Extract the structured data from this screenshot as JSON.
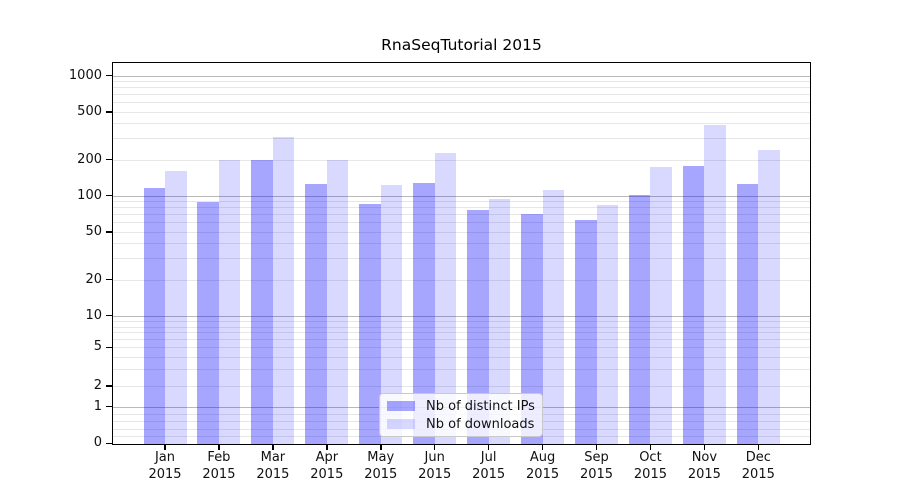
{
  "figure": {
    "background": "#ffffff",
    "frame_color": "#000000",
    "grid_minor_color": "#e7e7e7",
    "grid_major_color": "#b9b9b9"
  },
  "chart_data": {
    "type": "bar",
    "title": "RnaSeqTutorial 2015",
    "xlabel": "",
    "ylabel": "",
    "yscale": "symlog",
    "grid": true,
    "legend_position": "lower-center",
    "ylim": [
      0,
      1280
    ],
    "yticks": [
      0,
      1,
      2,
      5,
      10,
      20,
      50,
      100,
      200,
      500,
      1000
    ],
    "yticklabels": [
      "0",
      "1",
      "2",
      "5",
      "10",
      "20",
      "50",
      "100",
      "200",
      "500",
      "1000"
    ],
    "categories": [
      "Jan 2015",
      "Feb 2015",
      "Mar 2015",
      "Apr 2015",
      "May 2015",
      "Jun 2015",
      "Jul 2015",
      "Aug 2015",
      "Sep 2015",
      "Oct 2015",
      "Nov 2015",
      "Dec 2015"
    ],
    "series": [
      {
        "name": "Nb of distinct IPs",
        "color": "rgba(0,0,255,0.35)",
        "values": [
          115,
          89,
          200,
          125,
          85,
          128,
          76,
          70,
          63,
          101,
          176,
          125
        ]
      },
      {
        "name": "Nb of downloads",
        "color": "rgba(0,0,255,0.15)",
        "values": [
          162,
          200,
          310,
          197,
          124,
          228,
          93,
          111,
          83,
          175,
          388,
          240
        ]
      }
    ]
  }
}
